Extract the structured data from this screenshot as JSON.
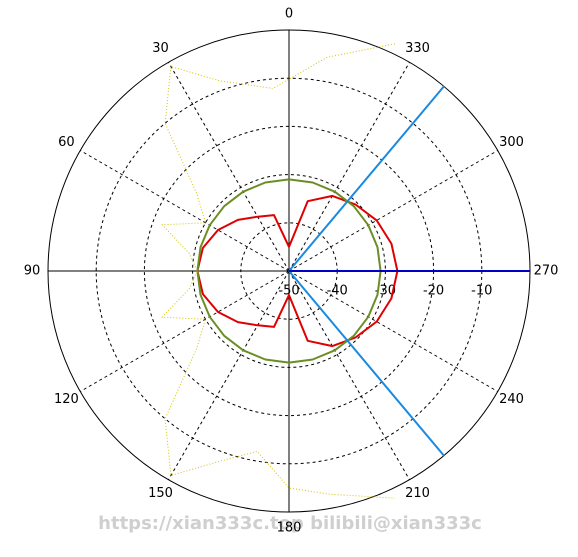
{
  "chart_data": {
    "type": "polar",
    "rlim": [
      -50,
      0
    ],
    "rticks": [
      -50,
      -40,
      -30,
      -20,
      -10
    ],
    "thetaticks": [
      0,
      30,
      60,
      90,
      120,
      150,
      180,
      210,
      240,
      270,
      300,
      330
    ],
    "grid": true,
    "watermark": "https://xian333c.top bilibili@xian333c",
    "series": [
      {
        "color": "#e00000",
        "style": "solid",
        "theta": [
          0,
          15,
          30,
          45,
          60,
          75,
          90,
          105,
          120,
          135,
          150,
          165,
          180,
          195,
          210,
          225,
          240,
          255,
          270,
          285,
          300,
          315,
          330,
          345,
          360
        ],
        "values": [
          -45,
          -38,
          -37,
          -35,
          -33,
          -31.5,
          -31,
          -31.5,
          -33,
          -35,
          -37,
          -38,
          -45,
          -35,
          -32,
          -30.5,
          -29,
          -28,
          -27.5,
          -28,
          -29,
          -30.5,
          -32,
          -35,
          -45
        ]
      },
      {
        "color": "#6b8e23",
        "style": "solid",
        "theta": [
          0,
          15,
          30,
          45,
          60,
          75,
          90,
          105,
          120,
          135,
          150,
          165,
          180,
          195,
          210,
          225,
          240,
          255,
          270,
          285,
          300,
          315,
          330,
          345,
          360
        ],
        "values": [
          -31,
          -31,
          -31,
          -31,
          -31,
          -31,
          -31,
          -31,
          -31,
          -31,
          -31,
          -31,
          -31,
          -31,
          -31,
          -31,
          -31,
          -31,
          -31,
          -31,
          -31,
          -31,
          -31,
          -31,
          -31
        ]
      },
      {
        "color": "#d4c200",
        "style": "dotted",
        "theta": [
          335,
          350,
          5,
          20,
          30,
          40,
          50,
          60,
          70,
          80,
          90,
          100,
          110,
          120,
          130,
          140,
          150,
          160,
          170,
          180,
          190,
          205
        ],
        "values": [
          2,
          -5,
          -12,
          -8,
          -1,
          -10,
          -25,
          -30,
          -22,
          -29,
          -31,
          -29,
          -22,
          -30,
          -25,
          -10,
          -1,
          -8,
          -12,
          -5,
          -3,
          2
        ]
      },
      {
        "color": "#1a8ae0",
        "style": "solid",
        "theta": [
          320,
          320
        ],
        "values": [
          -50,
          0
        ]
      },
      {
        "color": "#1a8ae0",
        "style": "solid",
        "theta": [
          220,
          220
        ],
        "values": [
          -50,
          0
        ]
      },
      {
        "color": "#0000c8",
        "style": "solid",
        "theta": [
          270,
          270
        ],
        "values": [
          -50,
          0
        ]
      }
    ]
  }
}
